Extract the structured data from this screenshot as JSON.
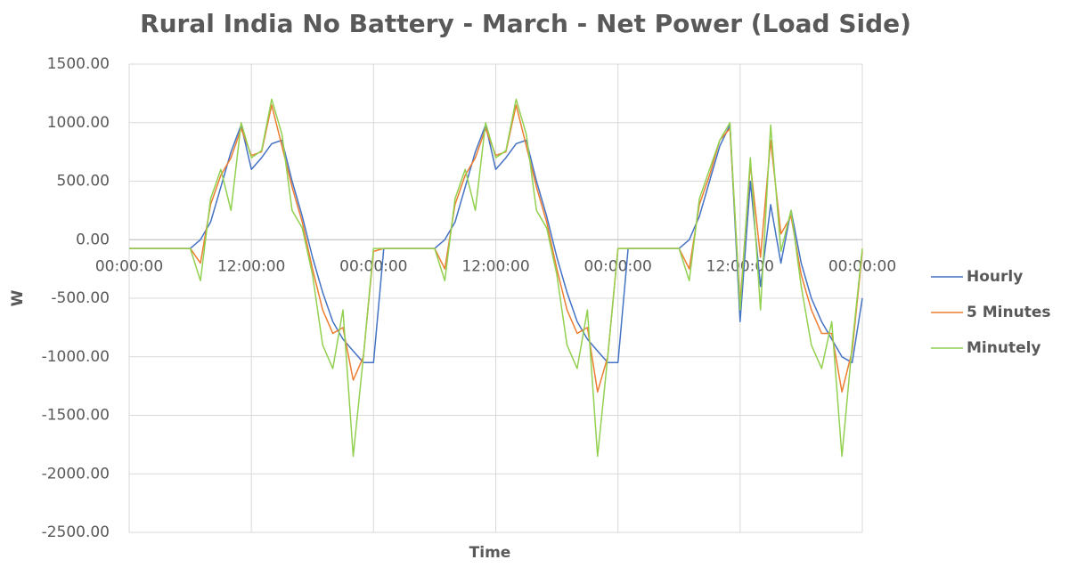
{
  "chart_data": {
    "type": "line",
    "title": "Rural India No Battery - March - Net Power (Load Side)",
    "x_label": "Time",
    "y_label": "W",
    "x": [
      0,
      1,
      2,
      3,
      4,
      5,
      6,
      7,
      8,
      9,
      10,
      11,
      12,
      13,
      14,
      15,
      16,
      17,
      18,
      19,
      20,
      21,
      22,
      23,
      24,
      25,
      26,
      27,
      28,
      29,
      30,
      31,
      32,
      33,
      34,
      35,
      36,
      37,
      38,
      39,
      40,
      41,
      42,
      43,
      44,
      45,
      46,
      47,
      48,
      49,
      50,
      51,
      52,
      53,
      54,
      55,
      56,
      57,
      58,
      59,
      60,
      61,
      62,
      63,
      64,
      65,
      66,
      67,
      68,
      69,
      70,
      71,
      72
    ],
    "xlim": [
      0,
      72
    ],
    "xticks": [
      {
        "value": 0,
        "label": "00:00:00"
      },
      {
        "value": 12,
        "label": "12:00:00"
      },
      {
        "value": 24,
        "label": "00:00:00"
      },
      {
        "value": 36,
        "label": "12:00:00"
      },
      {
        "value": 48,
        "label": "00:00:00"
      },
      {
        "value": 60,
        "label": "12:00:00"
      },
      {
        "value": 72,
        "label": "00:00:00"
      }
    ],
    "ylim": [
      -2500,
      1500
    ],
    "yticks": [
      {
        "value": 1500,
        "label": "1500.00"
      },
      {
        "value": 1000,
        "label": "1000.00"
      },
      {
        "value": 500,
        "label": "500.00"
      },
      {
        "value": 0,
        "label": "0.00"
      },
      {
        "value": -500,
        "label": "-500.00"
      },
      {
        "value": -1000,
        "label": "-1000.00"
      },
      {
        "value": -1500,
        "label": "-1500.00"
      },
      {
        "value": -2000,
        "label": "-2000.00"
      },
      {
        "value": -2500,
        "label": "-2500.00"
      }
    ],
    "grid": true,
    "legend": "right",
    "series": [
      {
        "name": "Hourly",
        "color": "#4472c4",
        "values": [
          -75,
          -75,
          -75,
          -75,
          -75,
          -75,
          -75,
          0,
          150,
          450,
          750,
          980,
          600,
          700,
          820,
          850,
          500,
          200,
          -150,
          -450,
          -700,
          -850,
          -950,
          -1050,
          -1050,
          -75,
          -75,
          -75,
          -75,
          -75,
          -75,
          0,
          150,
          450,
          750,
          980,
          600,
          700,
          820,
          850,
          500,
          200,
          -150,
          -450,
          -700,
          -850,
          -950,
          -1050,
          -1050,
          -75,
          -75,
          -75,
          -75,
          -75,
          -75,
          0,
          200,
          500,
          800,
          980,
          -700,
          500,
          -400,
          300,
          -200,
          250,
          -200,
          -500,
          -700,
          -850,
          -1000,
          -1050,
          -500
        ]
      },
      {
        "name": "5 Minutes",
        "color": "#ed7d31",
        "values": [
          -75,
          -75,
          -75,
          -75,
          -75,
          -75,
          -75,
          -200,
          300,
          550,
          700,
          950,
          720,
          750,
          1150,
          800,
          450,
          150,
          -250,
          -600,
          -800,
          -750,
          -1200,
          -1000,
          -100,
          -75,
          -75,
          -75,
          -75,
          -75,
          -75,
          -250,
          300,
          550,
          700,
          950,
          720,
          750,
          1150,
          800,
          450,
          150,
          -250,
          -600,
          -800,
          -750,
          -1300,
          -1000,
          -75,
          -75,
          -75,
          -75,
          -75,
          -75,
          -75,
          -250,
          300,
          550,
          850,
          950,
          -550,
          650,
          -150,
          850,
          50,
          200,
          -300,
          -600,
          -800,
          -800,
          -1300,
          -950,
          -100
        ]
      },
      {
        "name": "Minutely",
        "color": "#92d050",
        "values": [
          -75,
          -75,
          -75,
          -75,
          -75,
          -75,
          -75,
          -350,
          350,
          600,
          250,
          1000,
          700,
          760,
          1200,
          900,
          250,
          100,
          -300,
          -900,
          -1100,
          -600,
          -1850,
          -1000,
          -75,
          -75,
          -75,
          -75,
          -75,
          -75,
          -75,
          -350,
          350,
          600,
          250,
          1000,
          700,
          760,
          1200,
          900,
          250,
          100,
          -300,
          -900,
          -1100,
          -600,
          -1850,
          -1000,
          -75,
          -75,
          -75,
          -75,
          -75,
          -75,
          -75,
          -350,
          350,
          600,
          850,
          1000,
          -600,
          700,
          -600,
          980,
          -100,
          250,
          -400,
          -900,
          -1100,
          -700,
          -1850,
          -900,
          -75
        ]
      }
    ]
  }
}
